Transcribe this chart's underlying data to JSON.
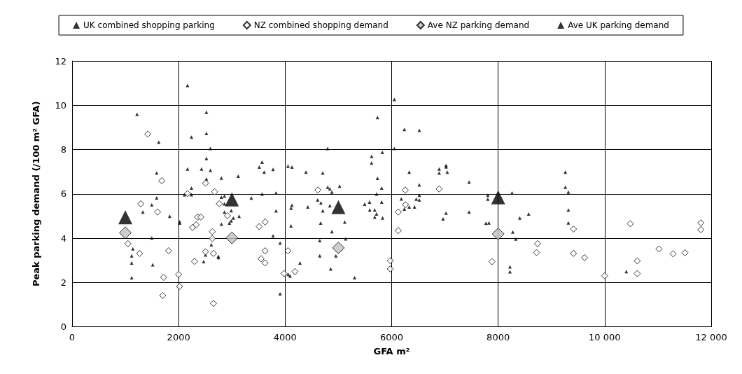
{
  "chart_data": {
    "type": "scatter",
    "xlabel": "GFA m²",
    "ylabel": "Peak parking demand (/100 m² GFA)",
    "xlim": [
      0,
      12000
    ],
    "xticks": [
      0,
      2000,
      4000,
      6000,
      8000,
      {
        "value": 10000,
        "label": "10 000"
      },
      {
        "value": 12000,
        "label": "12 000"
      }
    ],
    "ylim": [
      0,
      12
    ],
    "yticks": [
      0,
      2,
      4,
      6,
      8,
      10,
      12
    ],
    "grid": true,
    "legend": "top",
    "series": [
      {
        "name": "UK combined shopping parking",
        "color": "#000000",
        "marker": "triangle",
        "x": [
          2167,
          1219,
          2522,
          1627,
          2241,
          2522,
          2597,
          2522,
          2167,
          2430,
          2597,
          1588,
          2803,
          3119,
          2522,
          2241,
          2110,
          2241,
          1588,
          1496,
          2803,
          2860,
          2860,
          1329,
          1833,
          2018,
          2018,
          2860,
          2988,
          3027,
          3136,
          2988,
          2953,
          2803,
          1496,
          1141,
          1119,
          1119,
          1514,
          1119,
          2614,
          2505,
          2470,
          2746,
          2746,
          6050,
          5734,
          6238,
          4799,
          6050,
          5826,
          5624,
          5624,
          3567,
          3514,
          3606,
          3773,
          4054,
          4128,
          4391,
          4707,
          6330,
          5734,
          4799,
          4839,
          4878,
          5023,
          5813,
          5716,
          3830,
          3567,
          3365,
          4611,
          4672,
          4839,
          5493,
          5585,
          5813,
          6181,
          6238,
          6330,
          4128,
          4111,
          4426,
          3830,
          4707,
          5589,
          5681,
          5716,
          5681,
          5830,
          4667,
          5119,
          4111,
          4878,
          3773,
          5137,
          3905,
          4650,
          4650,
          4953,
          4278,
          4856,
          4058,
          4093,
          5304,
          3905,
          6519,
          6892,
          6892,
          7022,
          7022,
          7044,
          6519,
          7454,
          9261,
          9261,
          9318,
          6519,
          6462,
          6519,
          6429,
          7806,
          7806,
          8261,
          7022,
          6965,
          7454,
          8405,
          8572,
          9318,
          9318,
          7770,
          7826,
          8274,
          8331,
          8221,
          8221,
          10406
        ],
        "values": [
          10.89,
          9.59,
          9.68,
          8.33,
          8.56,
          8.73,
          8.05,
          7.6,
          7.12,
          7.12,
          7.06,
          6.94,
          6.71,
          6.8,
          6.67,
          6.26,
          5.96,
          5.96,
          5.82,
          5.5,
          5.85,
          5.9,
          5.55,
          5.18,
          4.99,
          4.74,
          4.68,
          5.18,
          5.24,
          4.91,
          4.99,
          4.78,
          4.68,
          4.63,
          4.01,
          3.52,
          3.2,
          2.88,
          2.8,
          2.21,
          3.7,
          3.24,
          2.94,
          3.18,
          3.12,
          10.26,
          9.45,
          8.91,
          8.05,
          8.05,
          7.87,
          7.69,
          7.39,
          7.43,
          7.21,
          6.98,
          7.11,
          7.25,
          7.21,
          6.98,
          6.94,
          6.98,
          6.7,
          6.3,
          6.22,
          6.08,
          6.35,
          6.26,
          5.99,
          6.04,
          5.99,
          5.81,
          5.72,
          5.59,
          5.46,
          5.53,
          5.63,
          5.63,
          5.77,
          5.31,
          5.41,
          5.49,
          5.35,
          5.41,
          5.23,
          5.23,
          5.27,
          5.27,
          5.09,
          4.95,
          4.91,
          4.68,
          4.73,
          4.55,
          4.29,
          4.1,
          3.97,
          3.78,
          3.89,
          3.2,
          3.2,
          2.88,
          2.61,
          2.36,
          2.29,
          2.21,
          1.49,
          8.87,
          7.12,
          6.94,
          7.28,
          7.22,
          6.98,
          6.4,
          6.53,
          6.98,
          6.3,
          6.08,
          5.94,
          5.76,
          5.72,
          5.41,
          5.94,
          5.76,
          6.04,
          5.13,
          4.87,
          5.18,
          4.91,
          5.09,
          5.27,
          4.69,
          4.67,
          4.69,
          4.28,
          3.96,
          2.7,
          2.48,
          2.49
        ]
      },
      {
        "name": "NZ combined shopping demand",
        "color": "#ffffff",
        "marker": "diamond",
        "x": [
          1421,
          1684,
          2505,
          2167,
          2676,
          1290,
          2763,
          1605,
          2356,
          2417,
          2917,
          2329,
          2259,
          2632,
          2632,
          1048,
          1268,
          1812,
          2505,
          2654,
          2299,
          2000,
          1719,
          2018,
          1702,
          2654,
          4615,
          6256,
          6260,
          6124,
          6124,
          3624,
          3514,
          3624,
          4054,
          3549,
          3624,
          4185,
          3979,
          5975,
          5975,
          6892,
          8739,
          8721,
          9414,
          9414,
          7883,
          9621,
          10000,
          10481,
          10612,
          10612,
          11020,
          11284,
          11508,
          11806,
          11806
        ],
        "values": [
          8.7,
          6.59,
          6.48,
          6.01,
          6.09,
          5.55,
          5.55,
          5.18,
          4.95,
          4.95,
          5.01,
          4.6,
          4.48,
          4.29,
          3.98,
          3.75,
          3.31,
          3.43,
          3.39,
          3.31,
          2.95,
          2.36,
          2.23,
          1.82,
          1.41,
          1.05,
          6.17,
          6.17,
          5.51,
          5.18,
          4.34,
          4.73,
          4.52,
          3.43,
          3.43,
          3.07,
          2.88,
          2.49,
          2.4,
          2.98,
          2.61,
          6.22,
          3.75,
          3.35,
          4.41,
          3.31,
          2.94,
          3.12,
          2.3,
          4.65,
          2.97,
          2.4,
          3.51,
          3.29,
          3.34,
          4.69,
          4.38
        ]
      },
      {
        "name": "Ave NZ parking demand",
        "color": "#c0c0c0",
        "marker": "diamond",
        "x": [
          1000,
          3000,
          5000,
          8000
        ],
        "values": [
          4.24,
          4.01,
          3.56,
          4.19
        ]
      },
      {
        "name": "Ave UK parking demand",
        "color": "#000000",
        "marker": "triangle",
        "x": [
          1000,
          3000,
          5000,
          8000
        ],
        "values": [
          4.94,
          5.75,
          5.4,
          5.84
        ]
      }
    ]
  }
}
